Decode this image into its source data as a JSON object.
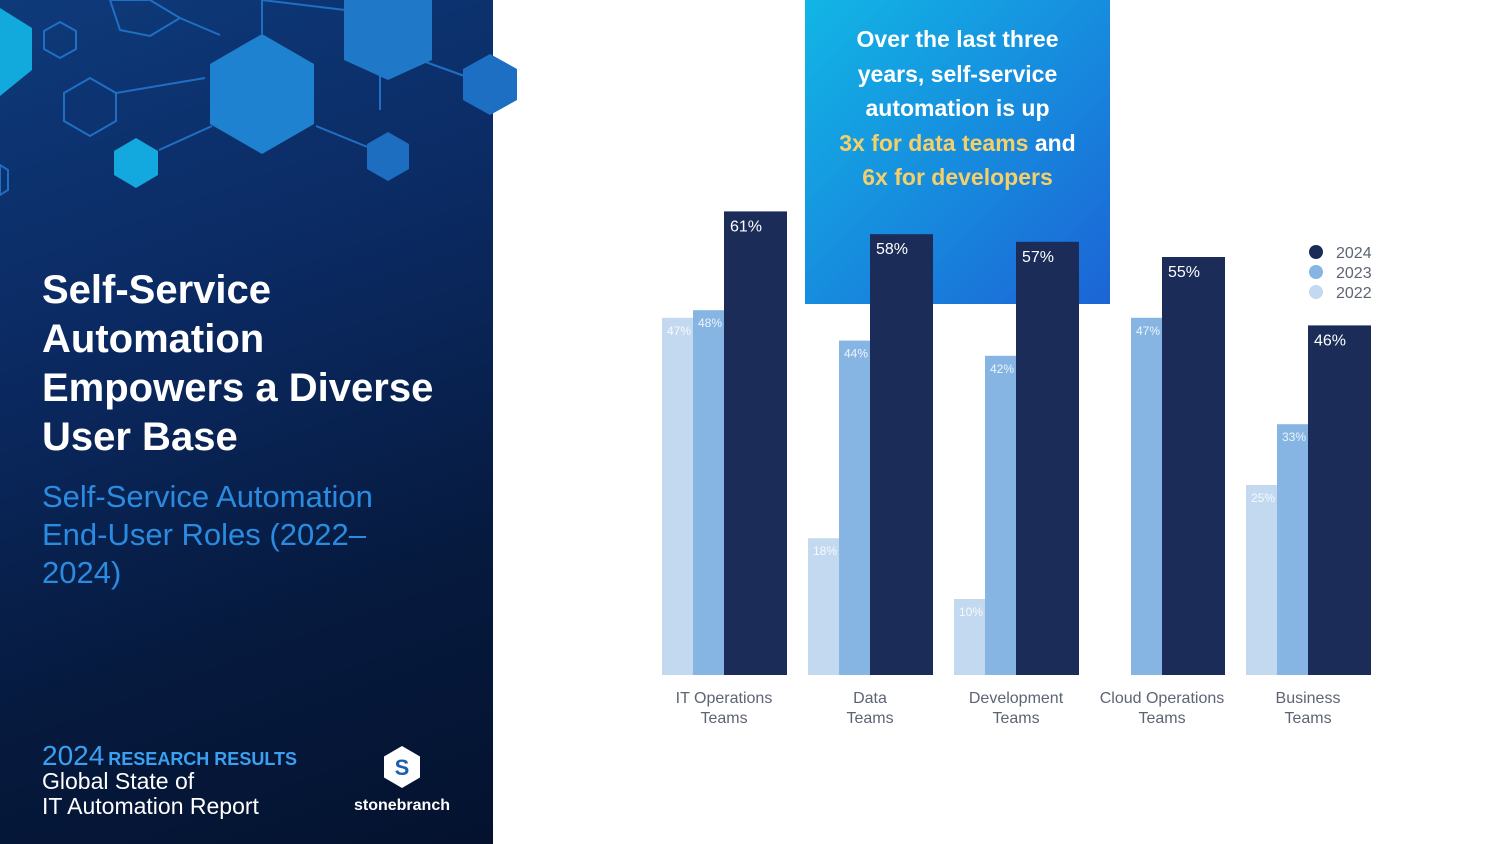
{
  "left": {
    "title": "Self-Service Automation Empowers a Diverse User Base",
    "subtitle": "Self-Service Automation End-User Roles (2022–2024)",
    "report_year": "2024",
    "report_tag": "RESEARCH RESULTS",
    "report_line1": "Global State of",
    "report_line2": "IT Automation Report",
    "brand": "stonebranch",
    "logo_letter": "S"
  },
  "callout": {
    "line1": "Over the last three",
    "line2": "years, self-service",
    "line3": "automation is up",
    "line4_highlight": "3x for data teams",
    "line4_rest": " and",
    "line5_highlight": "6x for developers"
  },
  "chart_data": {
    "type": "bar",
    "categories": [
      [
        "IT Operations",
        "Teams"
      ],
      [
        "Data",
        "Teams"
      ],
      [
        "Development",
        "Teams"
      ],
      [
        "Cloud Operations",
        "Teams"
      ],
      [
        "Business",
        "Teams"
      ]
    ],
    "series": [
      {
        "name": "2022",
        "color": "#c3d9f0",
        "values": [
          47,
          18,
          10,
          null,
          25
        ]
      },
      {
        "name": "2023",
        "color": "#86b5e3",
        "values": [
          48,
          44,
          42,
          47,
          33
        ]
      },
      {
        "name": "2024",
        "color": "#1a2c57",
        "values": [
          61,
          58,
          57,
          55,
          46
        ]
      }
    ],
    "legend_order": [
      "2024",
      "2023",
      "2022"
    ],
    "legend_position": "top-right",
    "ylim": [
      0,
      100
    ],
    "value_suffix": "%",
    "grid": false
  },
  "colors": {
    "panel_dark": "#061a3f",
    "accent_blue": "#2a8be0",
    "highlight_yellow": "#f5d06a",
    "bar_2024": "#1a2c57",
    "bar_2023": "#86b5e3",
    "bar_2022": "#c3d9f0"
  }
}
